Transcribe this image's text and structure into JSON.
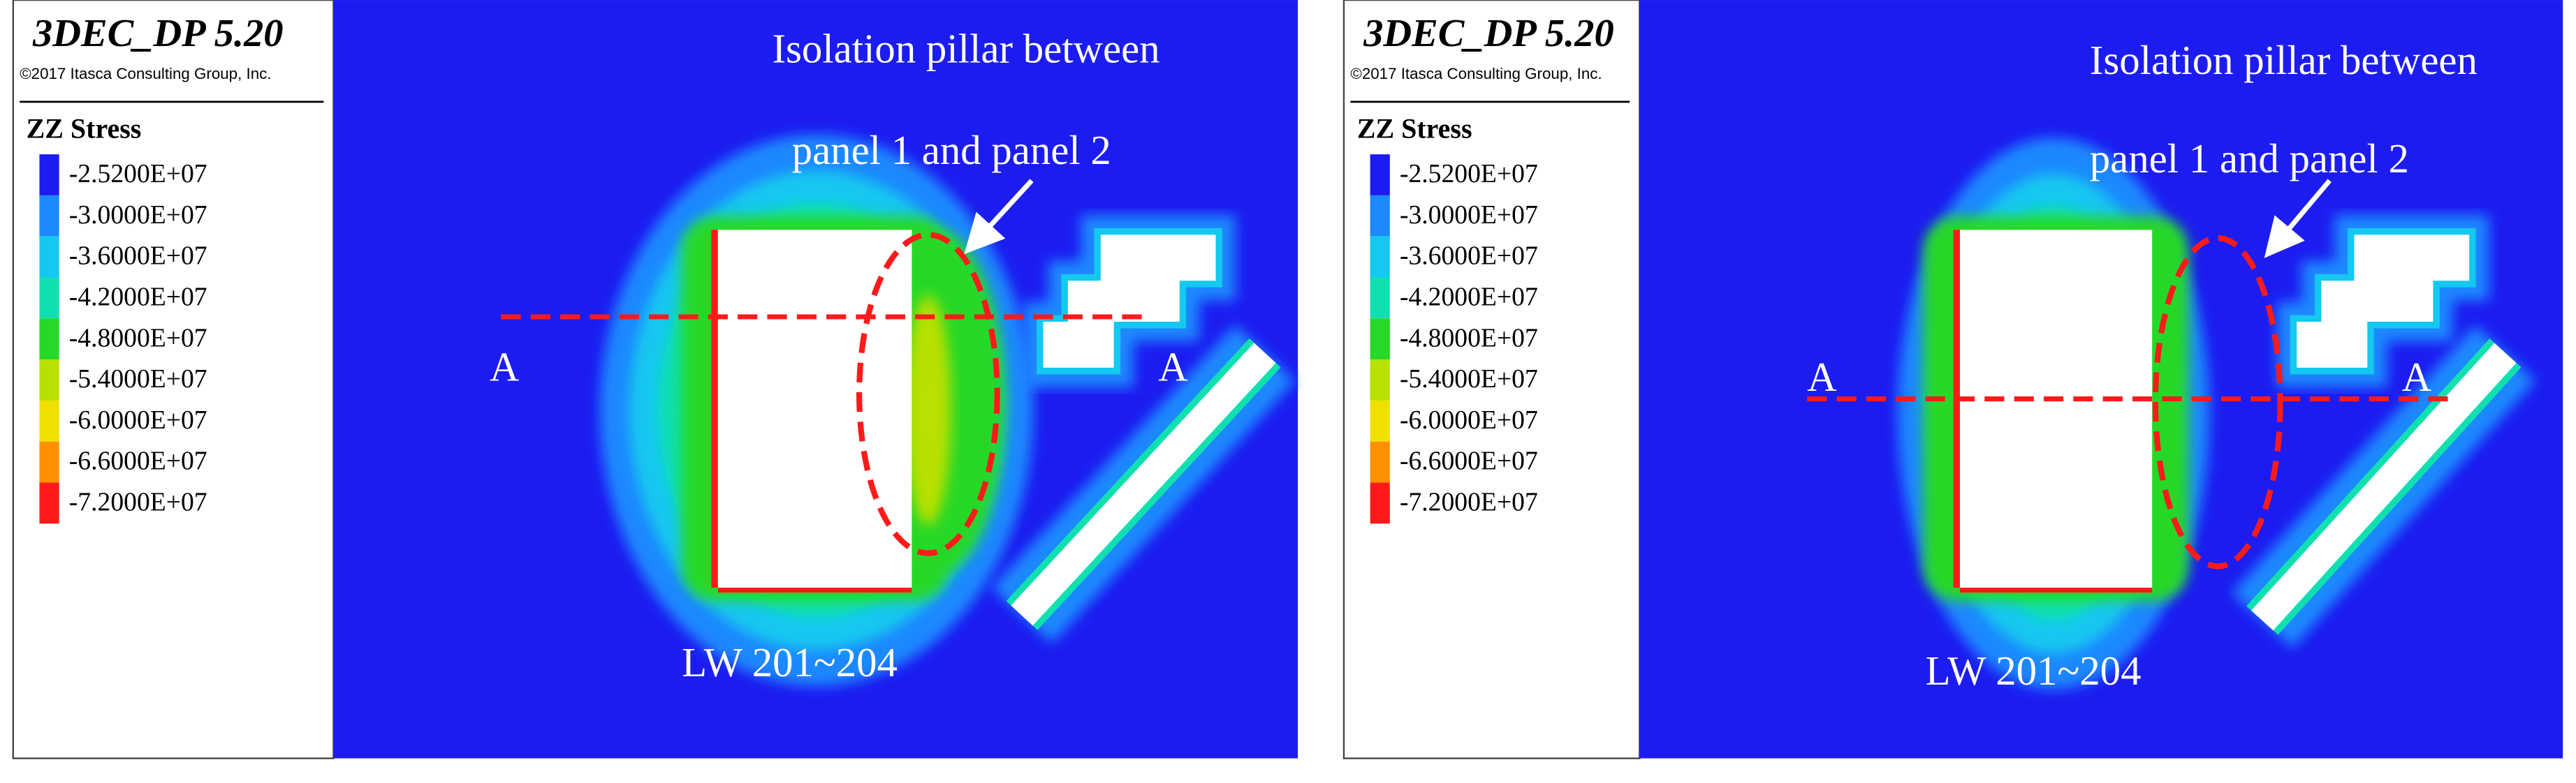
{
  "panels": [
    {
      "header": {
        "title": "3DEC_DP 5.20",
        "copyright": "©2017 Itasca Consulting Group, Inc."
      },
      "legend": {
        "title": "ZZ Stress",
        "items": [
          {
            "label": "-2.5200E+07",
            "color": "#1c1cf0"
          },
          {
            "label": "-3.0000E+07",
            "color": "#1e88ff"
          },
          {
            "label": "-3.6000E+07",
            "color": "#14c8f0"
          },
          {
            "label": "-4.2000E+07",
            "color": "#10e0b0"
          },
          {
            "label": "-4.8000E+07",
            "color": "#28d828"
          },
          {
            "label": "-5.4000E+07",
            "color": "#b8e000"
          },
          {
            "label": "-6.0000E+07",
            "color": "#f0e000"
          },
          {
            "label": "-6.6000E+07",
            "color": "#ff9000"
          },
          {
            "label": "-7.2000E+07",
            "color": "#ff1a1a"
          }
        ]
      },
      "annotations": {
        "pillar_line1": "Isolation pillar between",
        "pillar_line2": "panel 1 and panel 2",
        "section_left": "A",
        "section_right": "A",
        "longwall": "LW 201~204"
      }
    },
    {
      "header": {
        "title": "3DEC_DP 5.20",
        "copyright": "©2017 Itasca Consulting Group, Inc."
      },
      "legend": {
        "title": "ZZ Stress",
        "items": [
          {
            "label": "-2.5200E+07",
            "color": "#1c1cf0"
          },
          {
            "label": "-3.0000E+07",
            "color": "#1e88ff"
          },
          {
            "label": "-3.6000E+07",
            "color": "#14c8f0"
          },
          {
            "label": "-4.2000E+07",
            "color": "#10e0b0"
          },
          {
            "label": "-4.8000E+07",
            "color": "#28d828"
          },
          {
            "label": "-5.4000E+07",
            "color": "#b8e000"
          },
          {
            "label": "-6.0000E+07",
            "color": "#f0e000"
          },
          {
            "label": "-6.6000E+07",
            "color": "#ff9000"
          },
          {
            "label": "-7.2000E+07",
            "color": "#ff1a1a"
          }
        ]
      },
      "annotations": {
        "pillar_line1": "Isolation pillar between",
        "pillar_line2": "panel 1 and panel 2",
        "section_left": "A",
        "section_right": "A",
        "longwall": "LW 201~204"
      }
    }
  ]
}
